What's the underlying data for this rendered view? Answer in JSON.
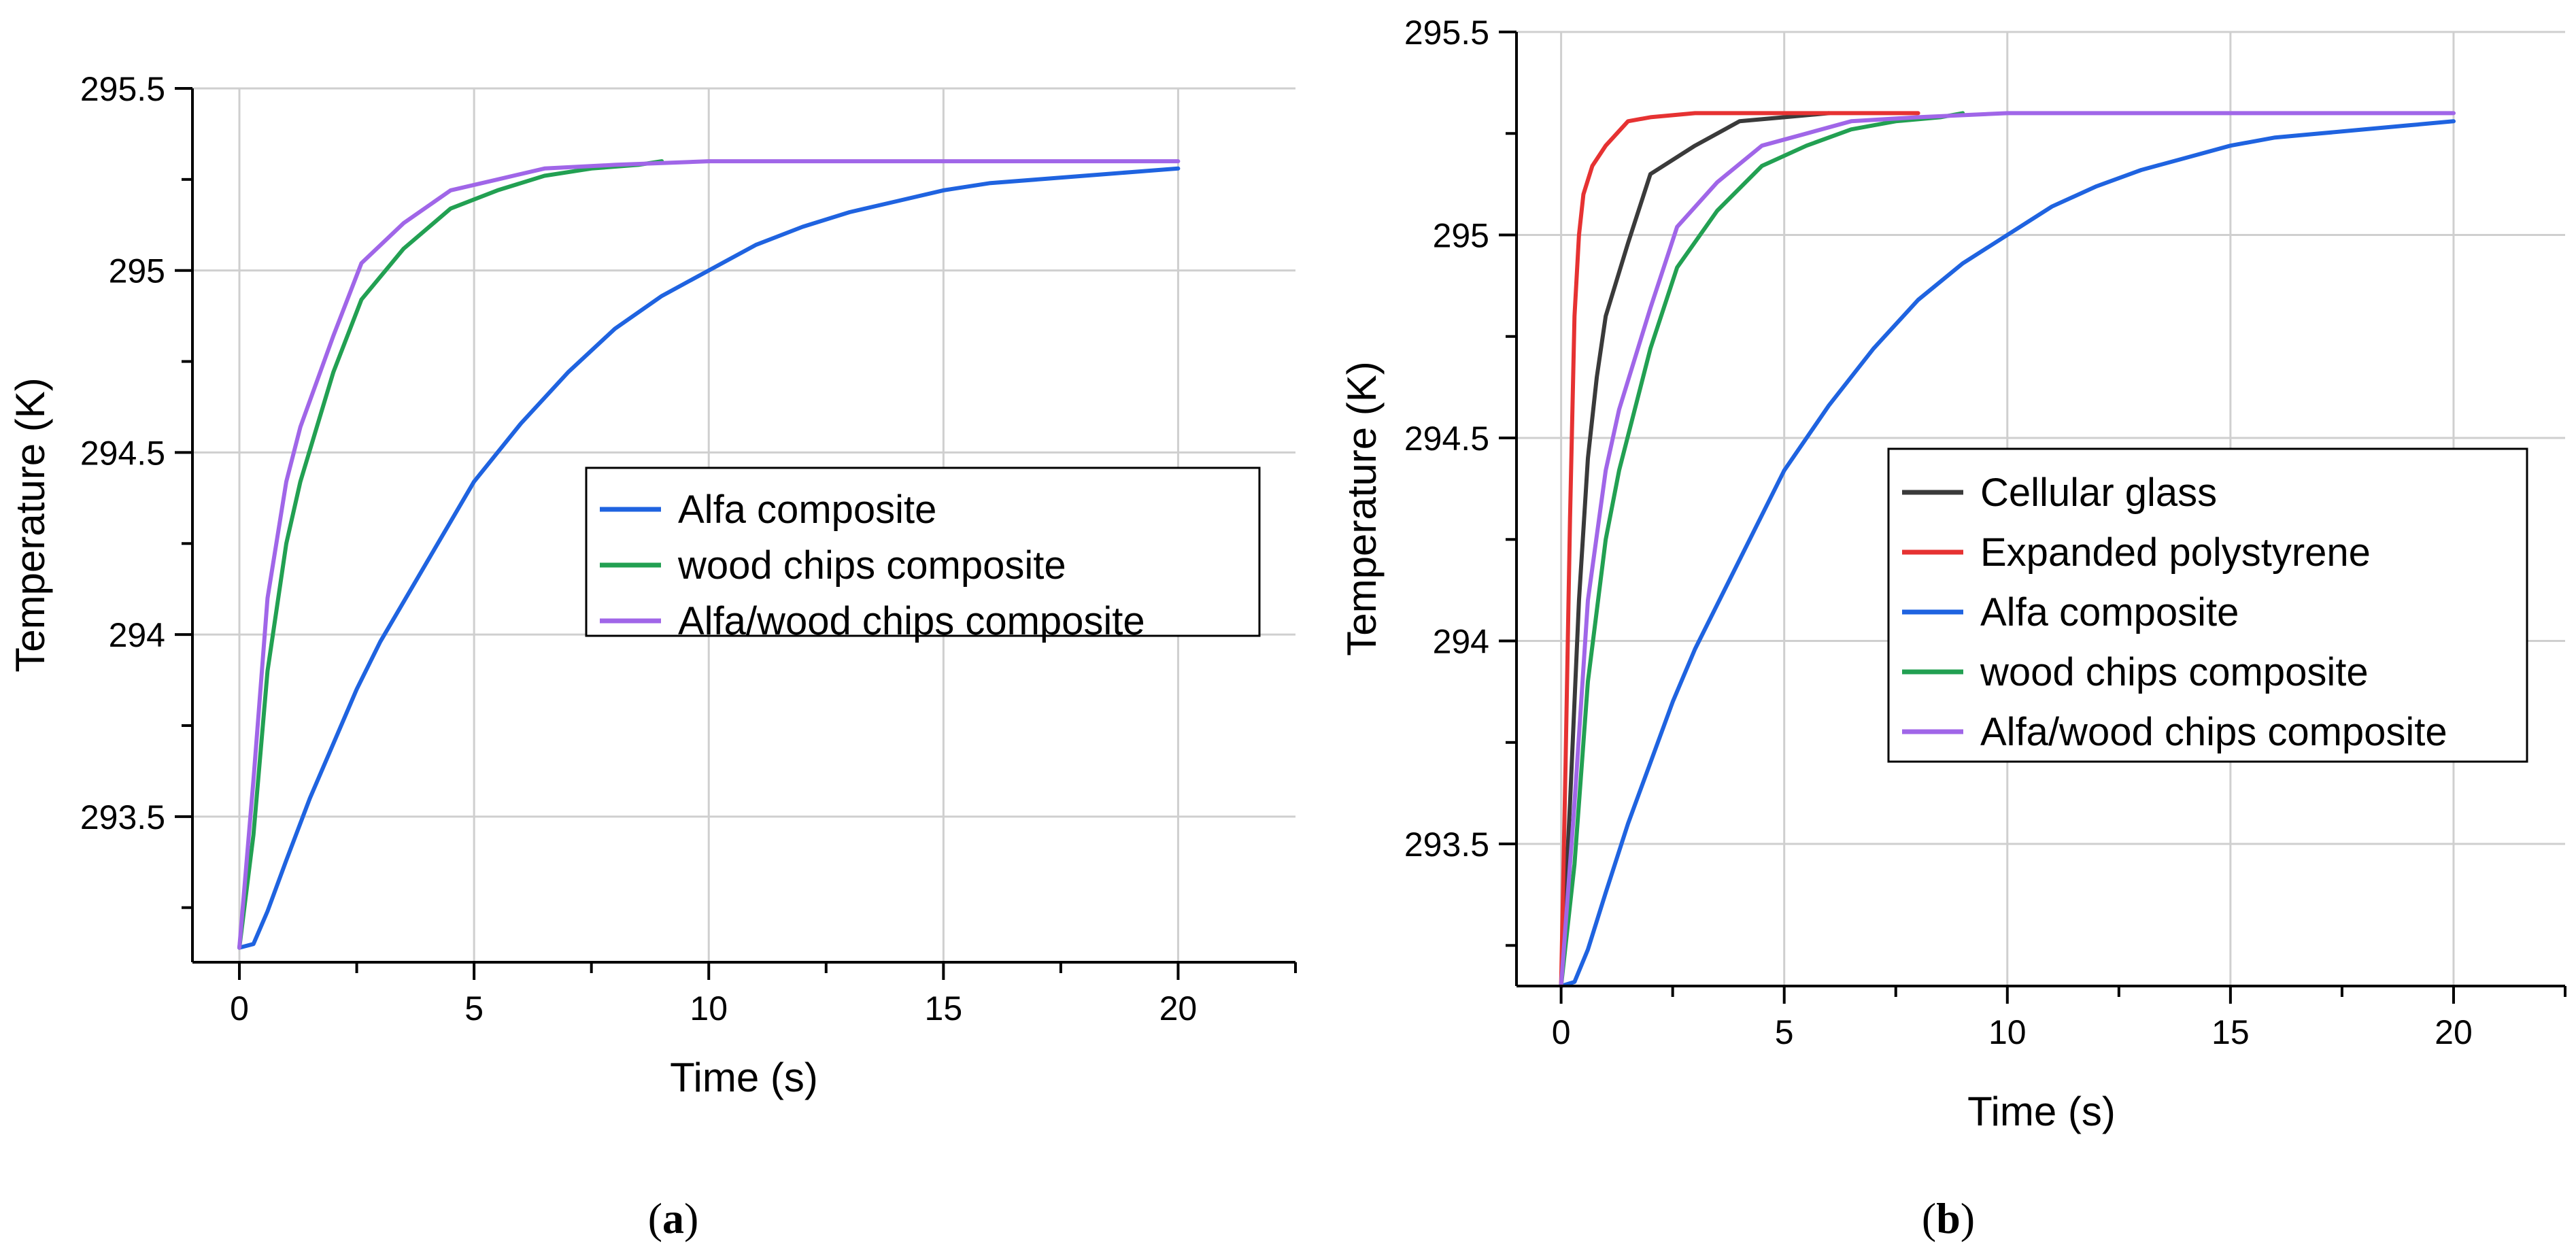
{
  "captions": {
    "a": "a",
    "b": "b"
  },
  "chart_data": [
    {
      "id": "a",
      "type": "line",
      "title": "",
      "xlabel": "Time (s)",
      "ylabel": "Temperature (K)",
      "xlim": [
        -1,
        22.5
      ],
      "ylim": [
        293.1,
        295.5
      ],
      "xticks": [
        0,
        5,
        10,
        15,
        20
      ],
      "yticks": [
        293.5,
        294,
        294.5,
        295,
        295.5
      ],
      "grid": true,
      "legend_position": "center-right",
      "series": [
        {
          "name": "Alfa composite",
          "color": "#1f63e0",
          "x": [
            0,
            0.3,
            0.6,
            1,
            1.5,
            2,
            2.5,
            3,
            4,
            5,
            6,
            7,
            8,
            9,
            10,
            11,
            12,
            13,
            14,
            15,
            16,
            17,
            18,
            19,
            20
          ],
          "y": [
            293.14,
            293.15,
            293.24,
            293.38,
            293.55,
            293.7,
            293.85,
            293.98,
            294.2,
            294.42,
            294.58,
            294.72,
            294.84,
            294.93,
            295.0,
            295.07,
            295.12,
            295.16,
            295.19,
            295.22,
            295.24,
            295.25,
            295.26,
            295.27,
            295.28
          ]
        },
        {
          "name": "wood chips composite",
          "color": "#22a052",
          "x": [
            0,
            0.3,
            0.6,
            1,
            1.3,
            2,
            2.6,
            3.5,
            4.5,
            5.5,
            6.5,
            7.5,
            8.5,
            9
          ],
          "y": [
            293.14,
            293.45,
            293.9,
            294.25,
            294.42,
            294.72,
            294.92,
            295.06,
            295.17,
            295.22,
            295.26,
            295.28,
            295.29,
            295.3
          ]
        },
        {
          "name": "Alfa/wood chips composite",
          "color": "#a066e8",
          "x": [
            0,
            0.3,
            0.6,
            1,
            1.3,
            2,
            2.6,
            3.5,
            4.5,
            5.5,
            6.5,
            8,
            10,
            15,
            20
          ],
          "y": [
            293.14,
            293.6,
            294.1,
            294.42,
            294.57,
            294.82,
            295.02,
            295.13,
            295.22,
            295.25,
            295.28,
            295.29,
            295.3,
            295.3,
            295.3
          ]
        }
      ]
    },
    {
      "id": "b",
      "type": "line",
      "title": "",
      "xlabel": "Time (s)",
      "ylabel": "Temperature (K)",
      "xlim": [
        -1,
        22.5
      ],
      "ylim": [
        293.15,
        295.5
      ],
      "xticks": [
        0,
        5,
        10,
        15,
        20
      ],
      "yticks": [
        293.5,
        294,
        294.5,
        295,
        295.5
      ],
      "grid": true,
      "legend_position": "center-right",
      "series": [
        {
          "name": "Cellular glass",
          "color": "#3a3a3a",
          "x": [
            0,
            0.2,
            0.4,
            0.6,
            0.8,
            1,
            1.5,
            2,
            3,
            4,
            5,
            6
          ],
          "y": [
            293.15,
            293.6,
            294.1,
            294.45,
            294.65,
            294.8,
            294.98,
            295.15,
            295.22,
            295.28,
            295.29,
            295.3
          ]
        },
        {
          "name": "Expanded polystyrene",
          "color": "#e63232",
          "x": [
            0,
            0.1,
            0.2,
            0.3,
            0.4,
            0.5,
            0.7,
            1,
            1.5,
            2,
            3,
            5,
            8
          ],
          "y": [
            293.15,
            293.7,
            294.3,
            294.8,
            295.0,
            295.1,
            295.17,
            295.22,
            295.28,
            295.29,
            295.3,
            295.3,
            295.3
          ]
        },
        {
          "name": "Alfa composite",
          "color": "#1f63e0",
          "x": [
            0,
            0.3,
            0.6,
            1,
            1.5,
            2,
            2.5,
            3,
            4,
            5,
            6,
            7,
            8,
            9,
            10,
            11,
            12,
            13,
            14,
            15,
            16,
            17,
            18,
            19,
            20
          ],
          "y": [
            293.15,
            293.16,
            293.24,
            293.38,
            293.55,
            293.7,
            293.85,
            293.98,
            294.2,
            294.42,
            294.58,
            294.72,
            294.84,
            294.93,
            295.0,
            295.07,
            295.12,
            295.16,
            295.19,
            295.22,
            295.24,
            295.25,
            295.26,
            295.27,
            295.28
          ]
        },
        {
          "name": "wood chips composite",
          "color": "#22a052",
          "x": [
            0,
            0.3,
            0.6,
            1,
            1.3,
            2,
            2.6,
            3.5,
            4.5,
            5.5,
            6.5,
            7.5,
            8.5,
            9
          ],
          "y": [
            293.15,
            293.45,
            293.9,
            294.25,
            294.42,
            294.72,
            294.92,
            295.06,
            295.17,
            295.22,
            295.26,
            295.28,
            295.29,
            295.3
          ]
        },
        {
          "name": "Alfa/wood chips composite",
          "color": "#a066e8",
          "x": [
            0,
            0.3,
            0.6,
            1,
            1.3,
            2,
            2.6,
            3.5,
            4.5,
            5.5,
            6.5,
            8,
            10,
            15,
            20
          ],
          "y": [
            293.15,
            293.6,
            294.1,
            294.42,
            294.57,
            294.82,
            295.02,
            295.13,
            295.22,
            295.25,
            295.28,
            295.29,
            295.3,
            295.3,
            295.3
          ]
        }
      ]
    }
  ]
}
